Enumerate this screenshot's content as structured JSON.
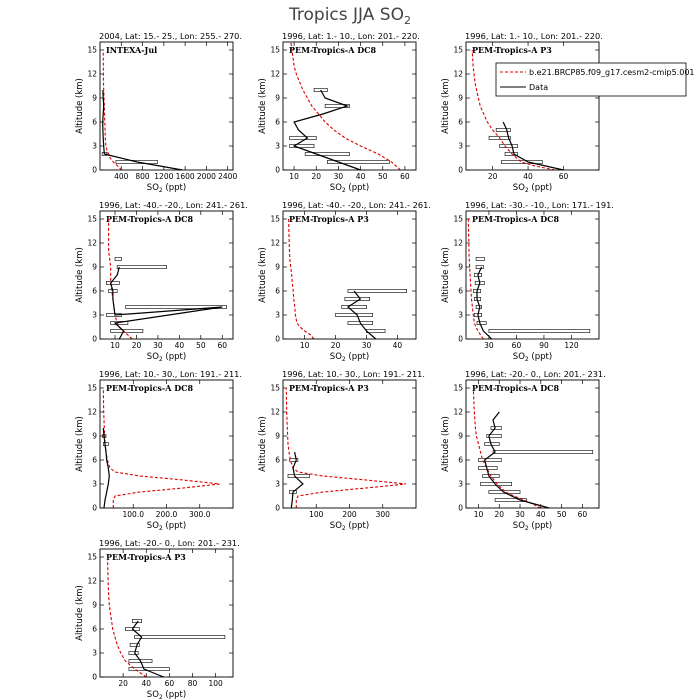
{
  "figure": {
    "title_main": "Tropics JJA SO",
    "title_sub": "2",
    "legend": {
      "model_label": "b.e21.BRCP85.f09_g17.cesm2-cmip5.001",
      "data_label": "Data",
      "model_color": "#dd0000",
      "data_color": "#000000"
    }
  },
  "axis_text": {
    "ylabel": "Altitude (km)",
    "xlabel_main": "SO",
    "xlabel_sub": "2",
    "xlabel_unit": " (ppt)"
  },
  "chart_data": [
    {
      "type": "line",
      "header": "2004, Lat: 15.- 25., Lon: 255.- 270.",
      "campaign": "INTEXA-Jul",
      "xlim": [
        0,
        2500
      ],
      "ylim": [
        0,
        16
      ],
      "xticks": [
        400,
        800,
        1200,
        1600,
        2000,
        2400
      ],
      "xticklabels": [
        "400",
        "800",
        "1200",
        "1600",
        "2000",
        "2400"
      ],
      "yticks": [
        0,
        3,
        6,
        9,
        12,
        15
      ],
      "model": {
        "x": [
          410,
          330,
          250,
          190,
          160,
          130,
          110,
          100,
          95,
          90,
          85,
          80,
          75,
          70,
          65,
          60
        ],
        "y": [
          0,
          0.5,
          1,
          1.5,
          2,
          2.5,
          3,
          4,
          5,
          6,
          7,
          8,
          9,
          10,
          11,
          15
        ]
      },
      "data": {
        "x": [
          1550,
          700,
          80,
          70,
          60,
          55,
          50,
          60,
          70,
          60,
          55
        ],
        "y": [
          0,
          1,
          2,
          3,
          4,
          5,
          6,
          7,
          8,
          9,
          10
        ]
      },
      "errors": [
        {
          "y": 1,
          "xmin": 300,
          "xmax": 1080
        },
        {
          "y": 2,
          "xmin": 40,
          "xmax": 130
        }
      ]
    },
    {
      "type": "line",
      "header": "1996, Lat: 1.- 10., Lon: 201.- 220.",
      "campaign": "PEM-Tropics-A DC8",
      "xlim": [
        5,
        65
      ],
      "ylim": [
        0,
        16
      ],
      "xticks": [
        10,
        20,
        30,
        40,
        50,
        60
      ],
      "xticklabels": [
        "10",
        "20",
        "30",
        "40",
        "50",
        "60"
      ],
      "yticks": [
        0,
        3,
        6,
        9,
        12,
        15
      ],
      "model": {
        "x": [
          58,
          54,
          48,
          40,
          33,
          28,
          24,
          21,
          18,
          16,
          14,
          12.5,
          11,
          10,
          9.5,
          9,
          8.5
        ],
        "y": [
          0,
          1,
          2,
          3,
          4,
          5,
          6,
          7,
          8,
          9,
          10,
          11,
          12,
          13,
          14,
          15,
          16
        ]
      },
      "data": {
        "x": [
          40,
          30,
          20,
          10,
          16,
          12,
          10,
          23,
          34,
          24,
          22
        ],
        "y": [
          0,
          1,
          2,
          3,
          4,
          5,
          6,
          7,
          8,
          9,
          10
        ]
      },
      "errors": [
        {
          "y": 1,
          "xmin": 25,
          "xmax": 53
        },
        {
          "y": 2,
          "xmin": 15,
          "xmax": 35
        },
        {
          "y": 3,
          "xmin": 8,
          "xmax": 19
        },
        {
          "y": 4,
          "xmin": 8,
          "xmax": 20
        },
        {
          "y": 8,
          "xmin": 24,
          "xmax": 35
        },
        {
          "y": 10,
          "xmin": 19,
          "xmax": 25
        }
      ]
    },
    {
      "type": "line",
      "header": "1996, Lat: 1.- 10., Lon: 201.- 220.",
      "campaign": "PEM-Tropics-A P3",
      "xlim": [
        5,
        80
      ],
      "ylim": [
        0,
        16
      ],
      "xticks": [
        20,
        40,
        60
      ],
      "xticklabels": [
        "20",
        "40",
        "60"
      ],
      "yticks": [
        0,
        3,
        6,
        9,
        12,
        15
      ],
      "model": {
        "x": [
          55,
          44,
          36,
          31,
          27,
          24,
          20,
          17,
          15,
          13,
          12,
          11,
          10,
          9.5,
          9,
          8.5
        ],
        "y": [
          0,
          0.5,
          1,
          2,
          3,
          4,
          5,
          6,
          7,
          8,
          9,
          10,
          11,
          12,
          13,
          15
        ]
      },
      "data": {
        "x": [
          60,
          40,
          32,
          31,
          29,
          28,
          26
        ],
        "y": [
          0,
          1,
          2,
          3,
          4,
          5,
          6
        ]
      },
      "errors": [
        {
          "y": 1,
          "xmin": 25,
          "xmax": 48
        },
        {
          "y": 2,
          "xmin": 27,
          "xmax": 34
        },
        {
          "y": 3,
          "xmin": 24,
          "xmax": 34
        },
        {
          "y": 4,
          "xmin": 18,
          "xmax": 30
        },
        {
          "y": 5,
          "xmin": 22,
          "xmax": 30
        }
      ]
    },
    {
      "type": "line",
      "header": "1996, Lat: -40.- -20., Lon: 241.- 261.",
      "campaign": "PEM-Tropics-A DC8",
      "xlim": [
        3,
        65
      ],
      "ylim": [
        0,
        16
      ],
      "xticks": [
        10,
        20,
        30,
        40,
        50,
        60
      ],
      "xticklabels": [
        "10",
        "20",
        "30",
        "40",
        "50",
        "60"
      ],
      "yticks": [
        0,
        3,
        6,
        9,
        12,
        15
      ],
      "model": {
        "x": [
          18,
          16,
          14,
          12,
          11,
          10,
          9.5,
          9,
          8.5,
          8,
          8,
          8,
          7.5,
          7,
          7,
          7
        ],
        "y": [
          0,
          0.5,
          1,
          1.5,
          2,
          3,
          4,
          5,
          6,
          7,
          8,
          9,
          10,
          11,
          12,
          15
        ]
      },
      "data": {
        "x": [
          12,
          14,
          10,
          60,
          10,
          9,
          9,
          8,
          11,
          12
        ],
        "y": [
          0,
          1,
          2,
          4,
          3,
          5,
          6,
          7,
          8,
          9
        ]
      },
      "errors": [
        {
          "y": 1,
          "xmin": 8,
          "xmax": 23
        },
        {
          "y": 2,
          "xmin": 8,
          "xmax": 16
        },
        {
          "y": 3,
          "xmin": 6,
          "xmax": 13
        },
        {
          "y": 4,
          "xmin": 15,
          "xmax": 62
        },
        {
          "y": 6,
          "xmin": 7,
          "xmax": 11
        },
        {
          "y": 7,
          "xmin": 6,
          "xmax": 12
        },
        {
          "y": 9,
          "xmin": 11,
          "xmax": 34
        },
        {
          "y": 10,
          "xmin": 10,
          "xmax": 13
        }
      ]
    },
    {
      "type": "line",
      "header": "1996, Lat: -40.- -20., Lon: 241.- 261.",
      "campaign": "PEM-Tropics-A P3",
      "xlim": [
        3,
        46
      ],
      "ylim": [
        0,
        16
      ],
      "xticks": [
        10,
        20,
        30,
        40
      ],
      "xticklabels": [
        "10",
        "20",
        "30",
        "40"
      ],
      "yticks": [
        0,
        3,
        6,
        9,
        12,
        15
      ],
      "model": {
        "x": [
          13,
          12,
          10,
          8.5,
          7.5,
          7,
          6.8,
          6.5,
          6.3,
          6,
          5.8,
          5.5,
          5.2,
          5,
          4.8
        ],
        "y": [
          0,
          0.5,
          1,
          1.5,
          2,
          3,
          4,
          5,
          6,
          7,
          8,
          9,
          10,
          12,
          15
        ]
      },
      "data": {
        "x": [
          33,
          30,
          28,
          27,
          24,
          28,
          26
        ],
        "y": [
          0,
          1,
          2,
          3,
          4,
          5,
          6
        ]
      },
      "errors": [
        {
          "y": 1,
          "xmin": 30,
          "xmax": 36
        },
        {
          "y": 2,
          "xmin": 24,
          "xmax": 32
        },
        {
          "y": 3,
          "xmin": 20,
          "xmax": 32
        },
        {
          "y": 4,
          "xmin": 22,
          "xmax": 30
        },
        {
          "y": 5,
          "xmin": 23,
          "xmax": 31
        },
        {
          "y": 6,
          "xmin": 24,
          "xmax": 43
        }
      ]
    },
    {
      "type": "line",
      "header": "1996, Lat: -30.- -10., Lon: 171.- 191.",
      "campaign": "PEM-Tropics-A DC8",
      "xlim": [
        5,
        150
      ],
      "ylim": [
        0,
        16
      ],
      "xticks": [
        30,
        60,
        90,
        120
      ],
      "xticklabels": [
        "30",
        "60",
        "90",
        "120"
      ],
      "yticks": [
        0,
        3,
        6,
        9,
        12,
        15
      ],
      "model": {
        "x": [
          24,
          21,
          18,
          16,
          14,
          13,
          12,
          11,
          10.5,
          10,
          9.5,
          9,
          8.5,
          8,
          7.5
        ],
        "y": [
          0,
          0.5,
          1,
          1.5,
          2,
          3,
          4,
          5,
          6,
          7,
          8,
          9,
          10,
          12,
          15
        ]
      },
      "data": {
        "x": [
          33,
          24,
          20,
          18,
          20,
          17,
          17,
          20,
          18,
          22
        ],
        "y": [
          0,
          1,
          2,
          3,
          4,
          5,
          6,
          7,
          8,
          9
        ]
      },
      "errors": [
        {
          "y": 1,
          "xmin": 30,
          "xmax": 140
        },
        {
          "y": 2,
          "xmin": 17,
          "xmax": 27
        },
        {
          "y": 3,
          "xmin": 14,
          "xmax": 22
        },
        {
          "y": 4,
          "xmin": 16,
          "xmax": 22
        },
        {
          "y": 5,
          "xmin": 14,
          "xmax": 21
        },
        {
          "y": 6,
          "xmin": 13,
          "xmax": 21
        },
        {
          "y": 7,
          "xmin": 15,
          "xmax": 25
        },
        {
          "y": 8,
          "xmin": 14,
          "xmax": 22
        },
        {
          "y": 9,
          "xmin": 16,
          "xmax": 24
        },
        {
          "y": 10,
          "xmin": 16,
          "xmax": 25
        }
      ]
    },
    {
      "type": "line",
      "header": "1996, Lat: 10.- 30., Lon: 191.- 211.",
      "campaign": "PEM-Tropics-A DC8",
      "xlim": [
        0,
        400
      ],
      "ylim": [
        0,
        16
      ],
      "xticks": [
        100,
        200,
        300
      ],
      "xticklabels": [
        "100.0",
        "200.0",
        "300.0"
      ],
      "yticks": [
        0,
        3,
        6,
        9,
        12,
        15
      ],
      "model": {
        "x": [
          40,
          40,
          40,
          45,
          120,
          250,
          360,
          250,
          120,
          45,
          30,
          22,
          18,
          15,
          13,
          11,
          10
        ],
        "y": [
          0,
          0.5,
          1,
          1.5,
          2,
          2.5,
          3,
          3.5,
          4,
          4.5,
          5,
          6,
          7,
          8,
          10,
          12,
          15
        ]
      },
      "data": {
        "x": [
          12,
          15,
          20,
          25,
          28,
          25,
          20,
          18,
          15,
          12,
          10
        ],
        "y": [
          0,
          1,
          2,
          3,
          4,
          5,
          6,
          7,
          8,
          9,
          10
        ]
      },
      "errors": [
        {
          "y": 8,
          "xmin": 10,
          "xmax": 25
        },
        {
          "y": 9,
          "xmin": 8,
          "xmax": 18
        }
      ]
    },
    {
      "type": "line",
      "header": "1996, Lat: 10.- 30., Lon: 191.- 211.",
      "campaign": "PEM-Tropics-A P3",
      "xlim": [
        0,
        400
      ],
      "ylim": [
        0,
        16
      ],
      "xticks": [
        100,
        200,
        300
      ],
      "xticklabels": [
        "100",
        "200",
        "300"
      ],
      "yticks": [
        0,
        3,
        6,
        9,
        12,
        15
      ],
      "model": {
        "x": [
          40,
          40,
          40,
          45,
          120,
          250,
          370,
          250,
          120,
          45,
          30,
          22,
          18,
          15,
          13,
          11,
          10
        ],
        "y": [
          0,
          0.5,
          1,
          1.5,
          2,
          2.5,
          3,
          3.5,
          4,
          4.5,
          5,
          6,
          7,
          8,
          10,
          12,
          15
        ]
      },
      "data": {
        "x": [
          25,
          28,
          30,
          60,
          35,
          30,
          40,
          35
        ],
        "y": [
          0,
          1,
          2,
          3,
          4,
          5,
          6,
          7
        ]
      },
      "errors": [
        {
          "y": 2,
          "xmin": 20,
          "xmax": 40
        },
        {
          "y": 4,
          "xmin": 15,
          "xmax": 80
        },
        {
          "y": 6,
          "xmin": 20,
          "xmax": 45
        }
      ]
    },
    {
      "type": "line",
      "header": "1996, Lat: -20.- 0., Lon: 201.- 231.",
      "campaign": "PEM-Tropics-A DC8",
      "xlim": [
        4,
        68
      ],
      "ylim": [
        0,
        16
      ],
      "xticks": [
        10,
        20,
        30,
        40,
        50,
        60
      ],
      "xticklabels": [
        "10",
        "20",
        "30",
        "40",
        "50",
        "60"
      ],
      "yticks": [
        0,
        3,
        6,
        9,
        12,
        15
      ],
      "model": {
        "x": [
          40,
          36,
          32,
          27,
          23,
          19,
          16,
          14,
          12,
          11,
          10,
          9,
          8.5,
          8,
          7.5
        ],
        "y": [
          0,
          0.5,
          1,
          1.5,
          2,
          3,
          4,
          5,
          6,
          7,
          8,
          9,
          10,
          12,
          15
        ]
      },
      "data": {
        "x": [
          44,
          30,
          22,
          18,
          15,
          14,
          13,
          18,
          16,
          15,
          18,
          17,
          20
        ],
        "y": [
          0,
          1,
          2,
          3,
          4,
          5,
          6,
          7,
          8,
          9,
          10,
          11,
          12
        ]
      },
      "errors": [
        {
          "y": 1,
          "xmin": 18,
          "xmax": 33
        },
        {
          "y": 2,
          "xmin": 15,
          "xmax": 30
        },
        {
          "y": 3,
          "xmin": 11,
          "xmax": 26
        },
        {
          "y": 4,
          "xmin": 12,
          "xmax": 20
        },
        {
          "y": 5,
          "xmin": 10,
          "xmax": 19
        },
        {
          "y": 6,
          "xmin": 10,
          "xmax": 21
        },
        {
          "y": 7,
          "xmin": 17,
          "xmax": 65
        },
        {
          "y": 8,
          "xmin": 13,
          "xmax": 20
        },
        {
          "y": 9,
          "xmin": 14,
          "xmax": 21
        },
        {
          "y": 10,
          "xmin": 16,
          "xmax": 21
        }
      ]
    },
    {
      "type": "line",
      "header": "1996, Lat: -20.- 0., Lon: 201.- 231.",
      "campaign": "PEM-Tropics-A P3",
      "xlim": [
        0,
        115
      ],
      "ylim": [
        0,
        16
      ],
      "xticks": [
        20,
        40,
        60,
        80,
        100
      ],
      "xticklabels": [
        "20",
        "40",
        "60",
        "80",
        "100"
      ],
      "yticks": [
        0,
        3,
        6,
        9,
        12,
        15
      ],
      "model": {
        "x": [
          40,
          35,
          30,
          26,
          22,
          18,
          15,
          13,
          11,
          10,
          9,
          8,
          7.5,
          7,
          6.5
        ],
        "y": [
          0,
          0.5,
          1,
          1.5,
          2,
          3,
          4,
          5,
          6,
          7,
          8,
          9,
          10,
          12,
          15
        ]
      },
      "data": {
        "x": [
          55,
          38,
          35,
          30,
          32,
          36,
          28,
          33
        ],
        "y": [
          0,
          1,
          2,
          3,
          4,
          5,
          6,
          7
        ]
      },
      "errors": [
        {
          "y": 1,
          "xmin": 25,
          "xmax": 60
        },
        {
          "y": 2,
          "xmin": 25,
          "xmax": 45
        },
        {
          "y": 3,
          "xmin": 25,
          "xmax": 33
        },
        {
          "y": 4,
          "xmin": 26,
          "xmax": 34
        },
        {
          "y": 5,
          "xmin": 30,
          "xmax": 108
        },
        {
          "y": 6,
          "xmin": 22,
          "xmax": 34
        },
        {
          "y": 7,
          "xmin": 28,
          "xmax": 36
        }
      ]
    }
  ]
}
